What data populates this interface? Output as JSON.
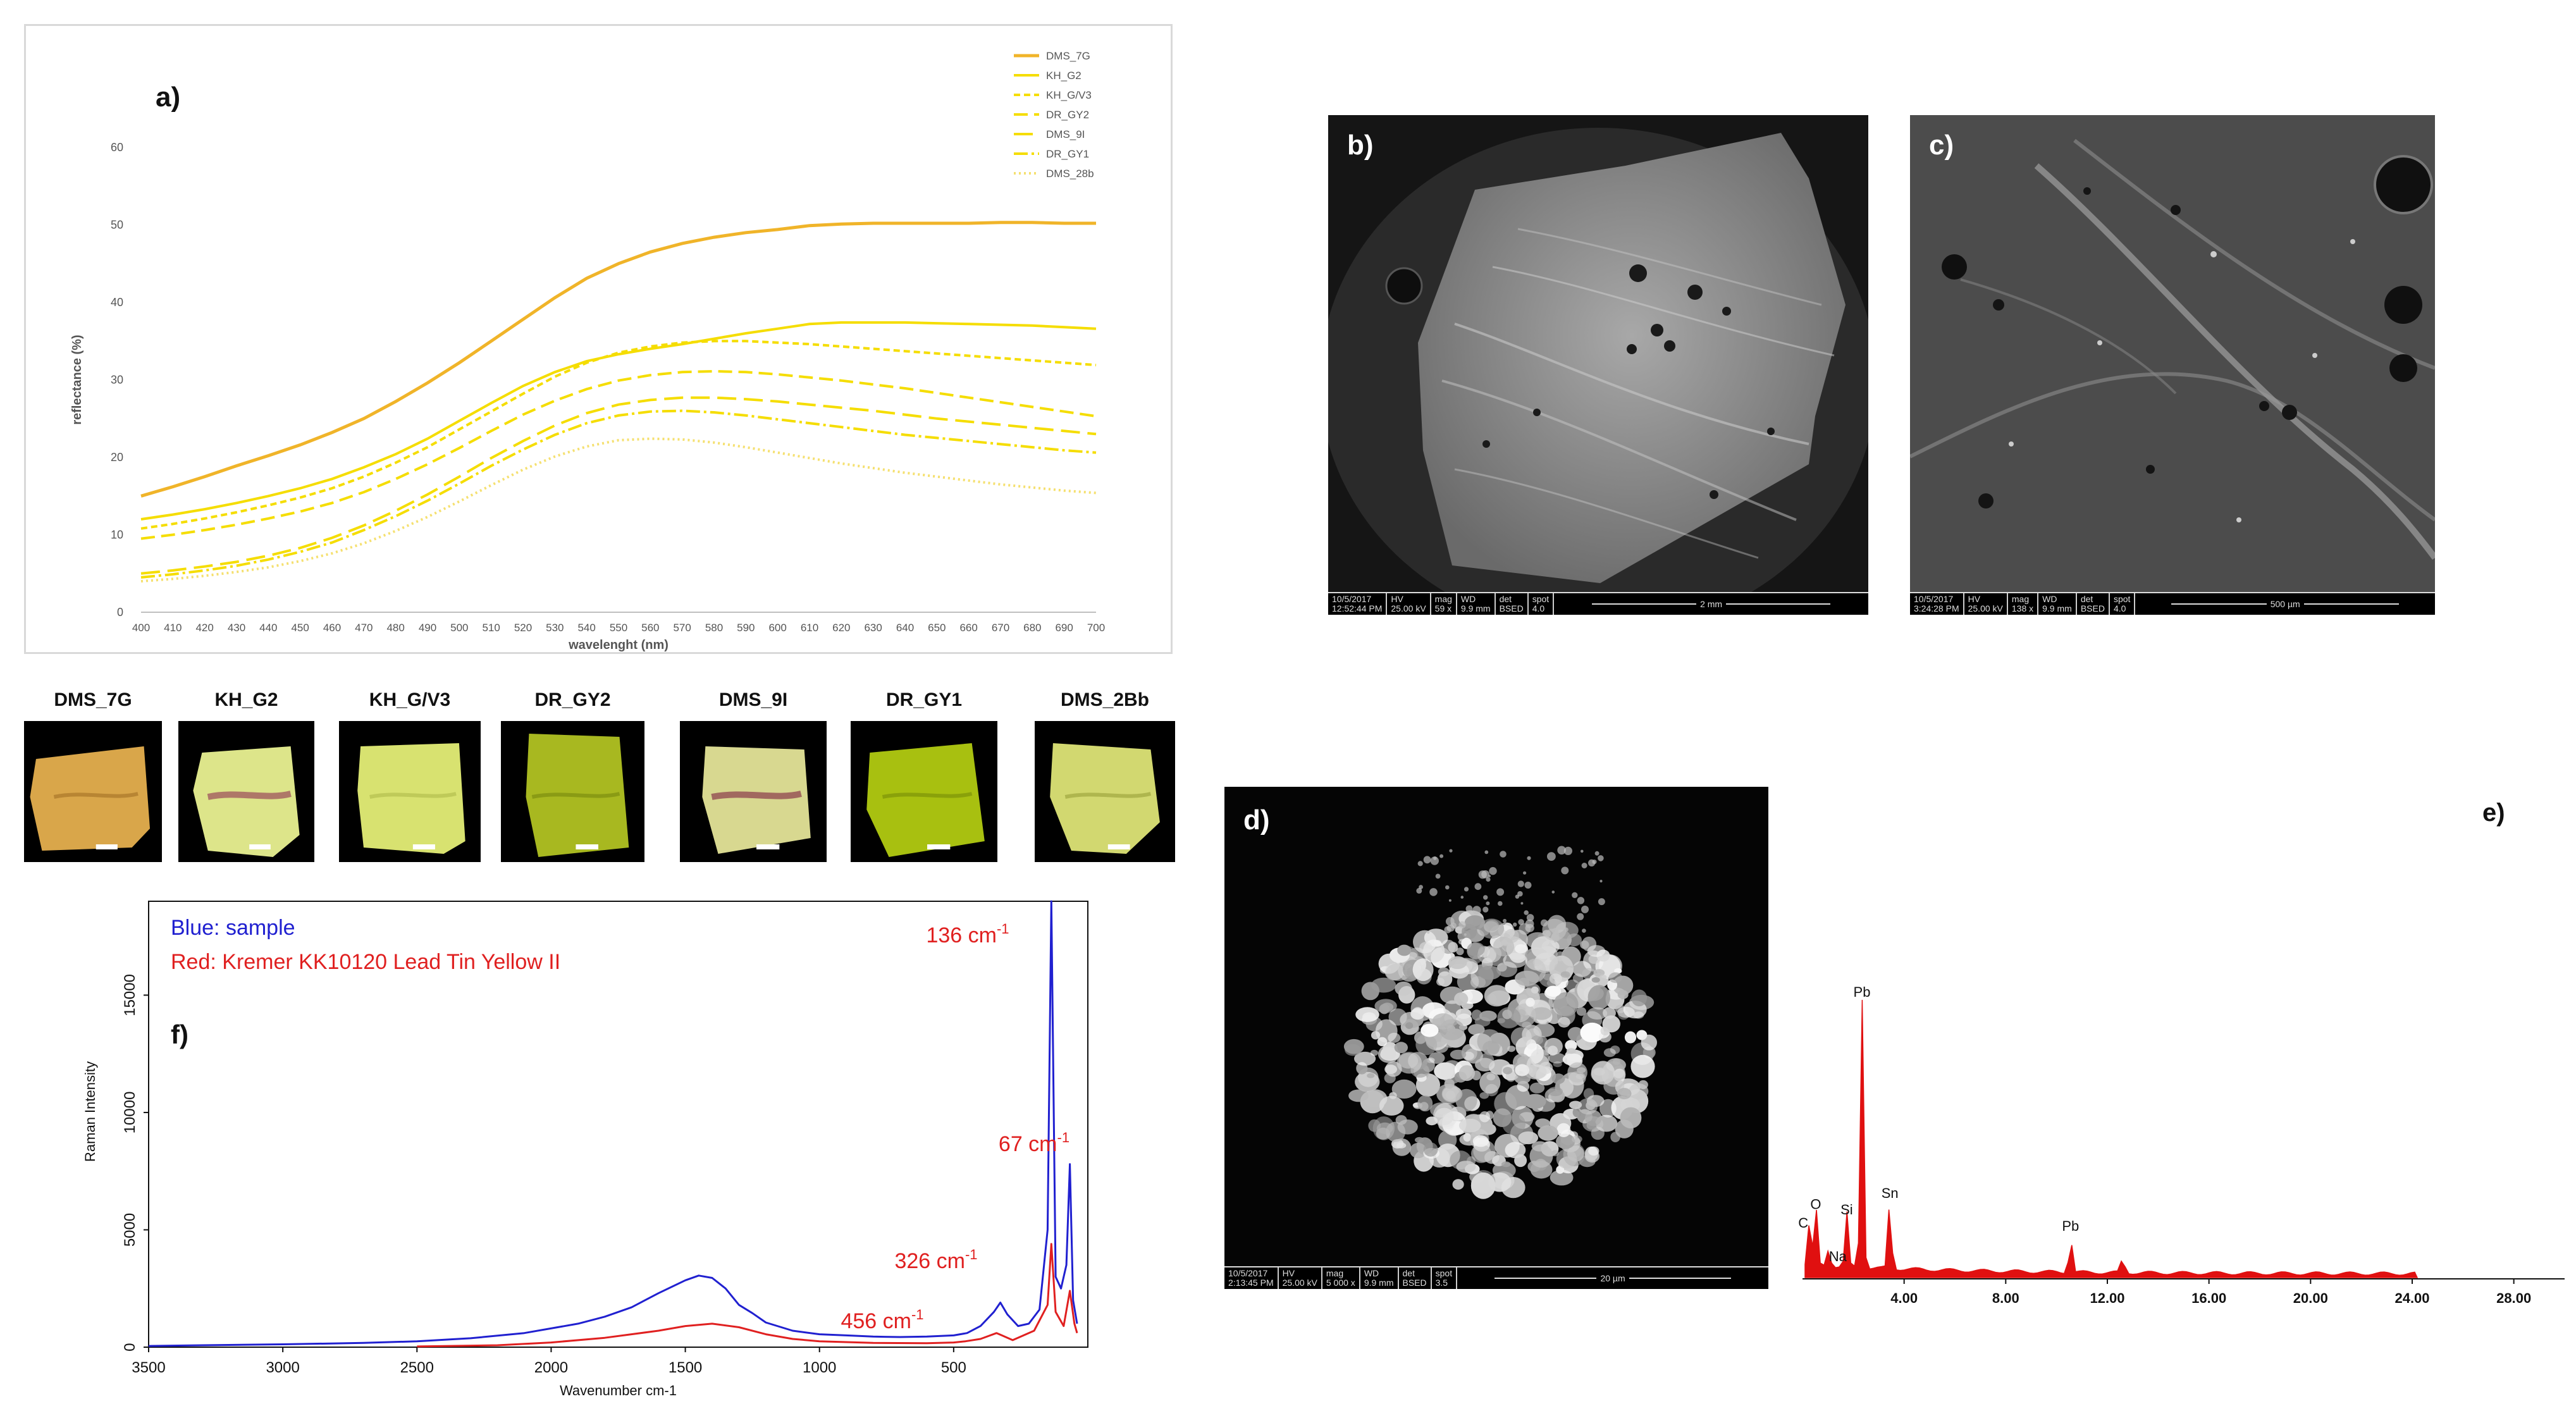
{
  "panels": {
    "a": "a)",
    "b": "b)",
    "c": "c)",
    "d": "d)",
    "e": "e)",
    "f": "f)"
  },
  "chart_data": [
    {
      "id": "a",
      "type": "line",
      "title": "",
      "xlabel": "wavelenght (nm)",
      "ylabel": "reflectance (%)",
      "x": [
        400,
        410,
        420,
        430,
        440,
        450,
        460,
        470,
        480,
        490,
        500,
        510,
        520,
        530,
        540,
        550,
        560,
        570,
        580,
        590,
        600,
        610,
        620,
        630,
        640,
        650,
        660,
        670,
        680,
        690,
        700
      ],
      "xlim": [
        400,
        700
      ],
      "ylim": [
        0,
        60
      ],
      "yticks": [
        0,
        10,
        20,
        30,
        40,
        50,
        60
      ],
      "grid": false,
      "legend": "top-right",
      "series": [
        {
          "name": "DMS_7G",
          "color": "#f0b429",
          "dash": "solid",
          "width": 5,
          "values": [
            15,
            16.2,
            17.5,
            18.9,
            20.2,
            21.6,
            23.2,
            25.0,
            27.2,
            29.6,
            32.2,
            35.0,
            37.8,
            40.6,
            43.1,
            45.0,
            46.5,
            47.6,
            48.4,
            49.0,
            49.4,
            49.9,
            50.1,
            50.2,
            50.2,
            50.2,
            50.2,
            50.3,
            50.3,
            50.2,
            50.2
          ]
        },
        {
          "name": "KH_G2",
          "color": "#f5dd00",
          "dash": "solid",
          "width": 4,
          "values": [
            12,
            12.6,
            13.3,
            14.1,
            15.0,
            16.0,
            17.2,
            18.7,
            20.4,
            22.4,
            24.7,
            27.0,
            29.2,
            31.0,
            32.4,
            33.3,
            34.0,
            34.6,
            35.3,
            36.0,
            36.6,
            37.2,
            37.4,
            37.4,
            37.4,
            37.3,
            37.2,
            37.1,
            37.0,
            36.8,
            36.6
          ]
        },
        {
          "name": "KH_G/V3",
          "color": "#f5dd00",
          "dash": "10,6",
          "width": 4,
          "values": [
            10.8,
            11.4,
            12.1,
            12.9,
            13.8,
            14.8,
            16.0,
            17.5,
            19.3,
            21.3,
            23.6,
            25.9,
            28.2,
            30.4,
            32.2,
            33.5,
            34.3,
            34.8,
            35.0,
            35.0,
            34.8,
            34.6,
            34.3,
            34.0,
            33.7,
            33.4,
            33.1,
            32.8,
            32.5,
            32.2,
            31.9
          ]
        },
        {
          "name": "DR_GY2",
          "color": "#f5dd00",
          "dash": "22,10",
          "width": 4,
          "values": [
            9.5,
            10.0,
            10.6,
            11.3,
            12.1,
            13.0,
            14.1,
            15.5,
            17.2,
            19.1,
            21.2,
            23.4,
            25.5,
            27.3,
            28.8,
            29.9,
            30.6,
            31.0,
            31.1,
            31.0,
            30.7,
            30.3,
            29.9,
            29.4,
            28.9,
            28.3,
            27.7,
            27.1,
            26.5,
            25.9,
            25.3
          ]
        },
        {
          "name": "DMS_9I",
          "color": "#f5dd00",
          "dash": "30,12",
          "width": 4,
          "values": [
            5.0,
            5.4,
            5.9,
            6.5,
            7.3,
            8.3,
            9.6,
            11.2,
            13.1,
            15.2,
            17.5,
            19.9,
            22.1,
            24.1,
            25.7,
            26.8,
            27.4,
            27.7,
            27.7,
            27.5,
            27.2,
            26.8,
            26.4,
            26.0,
            25.5,
            25.0,
            24.6,
            24.2,
            23.8,
            23.4,
            23.0
          ]
        },
        {
          "name": "DR_GY1",
          "color": "#f5dd00",
          "dash": "22,6,4,6",
          "width": 4,
          "values": [
            4.5,
            4.9,
            5.4,
            6.0,
            6.8,
            7.8,
            9.0,
            10.6,
            12.4,
            14.4,
            16.6,
            18.9,
            21.0,
            22.9,
            24.4,
            25.4,
            25.9,
            26.0,
            25.8,
            25.4,
            24.9,
            24.4,
            23.9,
            23.4,
            22.9,
            22.5,
            22.1,
            21.7,
            21.3,
            20.9,
            20.6
          ]
        },
        {
          "name": "DMS_28b",
          "color": "#f5e070",
          "dash": "3,5",
          "width": 4,
          "values": [
            4.0,
            4.3,
            4.7,
            5.2,
            5.8,
            6.6,
            7.6,
            8.9,
            10.5,
            12.3,
            14.3,
            16.4,
            18.4,
            20.1,
            21.4,
            22.2,
            22.4,
            22.3,
            21.9,
            21.3,
            20.6,
            19.9,
            19.2,
            18.6,
            18.0,
            17.5,
            17.0,
            16.5,
            16.1,
            15.7,
            15.4
          ]
        }
      ]
    },
    {
      "id": "e",
      "type": "area",
      "title": "",
      "xlabel": "",
      "ylabel": "",
      "xlim": [
        0,
        30
      ],
      "xticks": [
        4,
        8,
        12,
        16,
        20,
        24,
        28
      ],
      "xtick_labels": [
        "4.00",
        "8.00",
        "12.00",
        "16.00",
        "20.00",
        "24.00",
        "28.00"
      ],
      "color": "#e01010",
      "peaks": [
        {
          "x": 0.28,
          "y": 0.16,
          "label": "C"
        },
        {
          "x": 0.52,
          "y": 0.22,
          "label": "O"
        },
        {
          "x": 1.04,
          "y": 0.07,
          "label": "Na"
        },
        {
          "x": 1.74,
          "y": 0.2,
          "label": "Si"
        },
        {
          "x": 2.34,
          "y": 1.0,
          "label": "Pb"
        },
        {
          "x": 3.44,
          "y": 0.26,
          "label": "Sn"
        },
        {
          "x": 10.55,
          "y": 0.14,
          "label": "Pb"
        },
        {
          "x": 12.61,
          "y": 0.06,
          "label": ""
        }
      ]
    },
    {
      "id": "f",
      "type": "line",
      "title": "",
      "xlabel": "Wavenumber cm-1",
      "ylabel": "Raman Intensity",
      "xlim": [
        3500,
        0
      ],
      "xticks": [
        3500,
        3000,
        2500,
        2000,
        1500,
        1000,
        500
      ],
      "ylim": [
        0,
        19000
      ],
      "yticks": [
        0,
        5000,
        10000,
        15000
      ],
      "legend": "top-left",
      "legend_entries": [
        {
          "text": "Blue: sample",
          "color": "#2020d0"
        },
        {
          "text": "Red: Kremer KK10120 Lead Tin Yellow II",
          "color": "#e02020"
        }
      ],
      "annotations": [
        {
          "text": "136 cm",
          "sup": "-1",
          "x": 136
        },
        {
          "text": "67 cm",
          "sup": "-1",
          "x": 67
        },
        {
          "text": "326 cm",
          "sup": "-1",
          "x": 326
        },
        {
          "text": "456 cm",
          "sup": "-1",
          "x": 456
        }
      ],
      "series": [
        {
          "name": "sample",
          "color": "#2020d0",
          "points": [
            [
              3500,
              50
            ],
            [
              3300,
              80
            ],
            [
              3000,
              120
            ],
            [
              2700,
              180
            ],
            [
              2500,
              250
            ],
            [
              2300,
              380
            ],
            [
              2100,
              600
            ],
            [
              1900,
              1000
            ],
            [
              1800,
              1300
            ],
            [
              1700,
              1700
            ],
            [
              1600,
              2300
            ],
            [
              1500,
              2850
            ],
            [
              1450,
              3050
            ],
            [
              1400,
              2950
            ],
            [
              1350,
              2500
            ],
            [
              1300,
              1800
            ],
            [
              1250,
              1450
            ],
            [
              1200,
              1050
            ],
            [
              1100,
              700
            ],
            [
              1000,
              550
            ],
            [
              900,
              500
            ],
            [
              800,
              450
            ],
            [
              700,
              430
            ],
            [
              600,
              450
            ],
            [
              500,
              500
            ],
            [
              450,
              600
            ],
            [
              400,
              900
            ],
            [
              350,
              1500
            ],
            [
              326,
              1900
            ],
            [
              300,
              1400
            ],
            [
              260,
              900
            ],
            [
              220,
              1000
            ],
            [
              180,
              1600
            ],
            [
              150,
              5000
            ],
            [
              136,
              19000
            ],
            [
              120,
              3000
            ],
            [
              100,
              2500
            ],
            [
              80,
              3500
            ],
            [
              67,
              7800
            ],
            [
              55,
              2000
            ],
            [
              40,
              1000
            ]
          ]
        },
        {
          "name": "Kremer KK10120 Lead Tin Yellow II",
          "color": "#e02020",
          "points": [
            [
              2500,
              30
            ],
            [
              2200,
              80
            ],
            [
              2000,
              200
            ],
            [
              1800,
              400
            ],
            [
              1600,
              700
            ],
            [
              1500,
              900
            ],
            [
              1400,
              1000
            ],
            [
              1300,
              850
            ],
            [
              1200,
              550
            ],
            [
              1100,
              350
            ],
            [
              1000,
              250
            ],
            [
              800,
              180
            ],
            [
              600,
              170
            ],
            [
              500,
              200
            ],
            [
              456,
              250
            ],
            [
              400,
              350
            ],
            [
              340,
              600
            ],
            [
              320,
              500
            ],
            [
              280,
              300
            ],
            [
              200,
              700
            ],
            [
              150,
              1800
            ],
            [
              136,
              4400
            ],
            [
              120,
              1500
            ],
            [
              90,
              900
            ],
            [
              67,
              2400
            ],
            [
              50,
              1000
            ],
            [
              40,
              600
            ]
          ]
        }
      ]
    }
  ],
  "sem": {
    "b": {
      "date": "10/5/2017",
      "time": "12:52:44 PM",
      "hv_label": "HV",
      "hv": "25.00 kV",
      "mag_label": "mag",
      "mag": "59 x",
      "wd_label": "WD",
      "wd": "9.9 mm",
      "det_label": "det",
      "det": "BSED",
      "spot_label": "spot",
      "spot": "4.0",
      "scale": "2 mm"
    },
    "c": {
      "date": "10/5/2017",
      "time": "3:24:28 PM",
      "hv_label": "HV",
      "hv": "25.00 kV",
      "mag_label": "mag",
      "mag": "138 x",
      "wd_label": "WD",
      "wd": "9.9 mm",
      "det_label": "det",
      "det": "BSED",
      "spot_label": "spot",
      "spot": "4.0",
      "scale": "500 µm"
    },
    "d": {
      "date": "10/5/2017",
      "time": "2:13:45 PM",
      "hv_label": "HV",
      "hv": "25.00 kV",
      "mag_label": "mag",
      "mag": "5 000 x",
      "wd_label": "WD",
      "wd": "9.9 mm",
      "det_label": "det",
      "det": "BSED",
      "spot_label": "spot",
      "spot": "3.5",
      "scale": "20 µm"
    }
  },
  "samples": [
    {
      "name": "DMS_7G",
      "color": "#d9a64a",
      "shade": "#a9772a"
    },
    {
      "name": "KH_G2",
      "color": "#dde58a",
      "shade": "#9a4a5a"
    },
    {
      "name": "KH_G/V3",
      "color": "#d8e270",
      "shade": "#b5c050"
    },
    {
      "name": "DR_GY2",
      "color": "#a8b820",
      "shade": "#7e8e10"
    },
    {
      "name": "DMS_9I",
      "color": "#d8d890",
      "shade": "#8a3a4a"
    },
    {
      "name": "DR_GY1",
      "color": "#a8c010",
      "shade": "#7e9408"
    },
    {
      "name": "DMS_2Bb",
      "color": "#d2d870",
      "shade": "#a0a840"
    }
  ]
}
